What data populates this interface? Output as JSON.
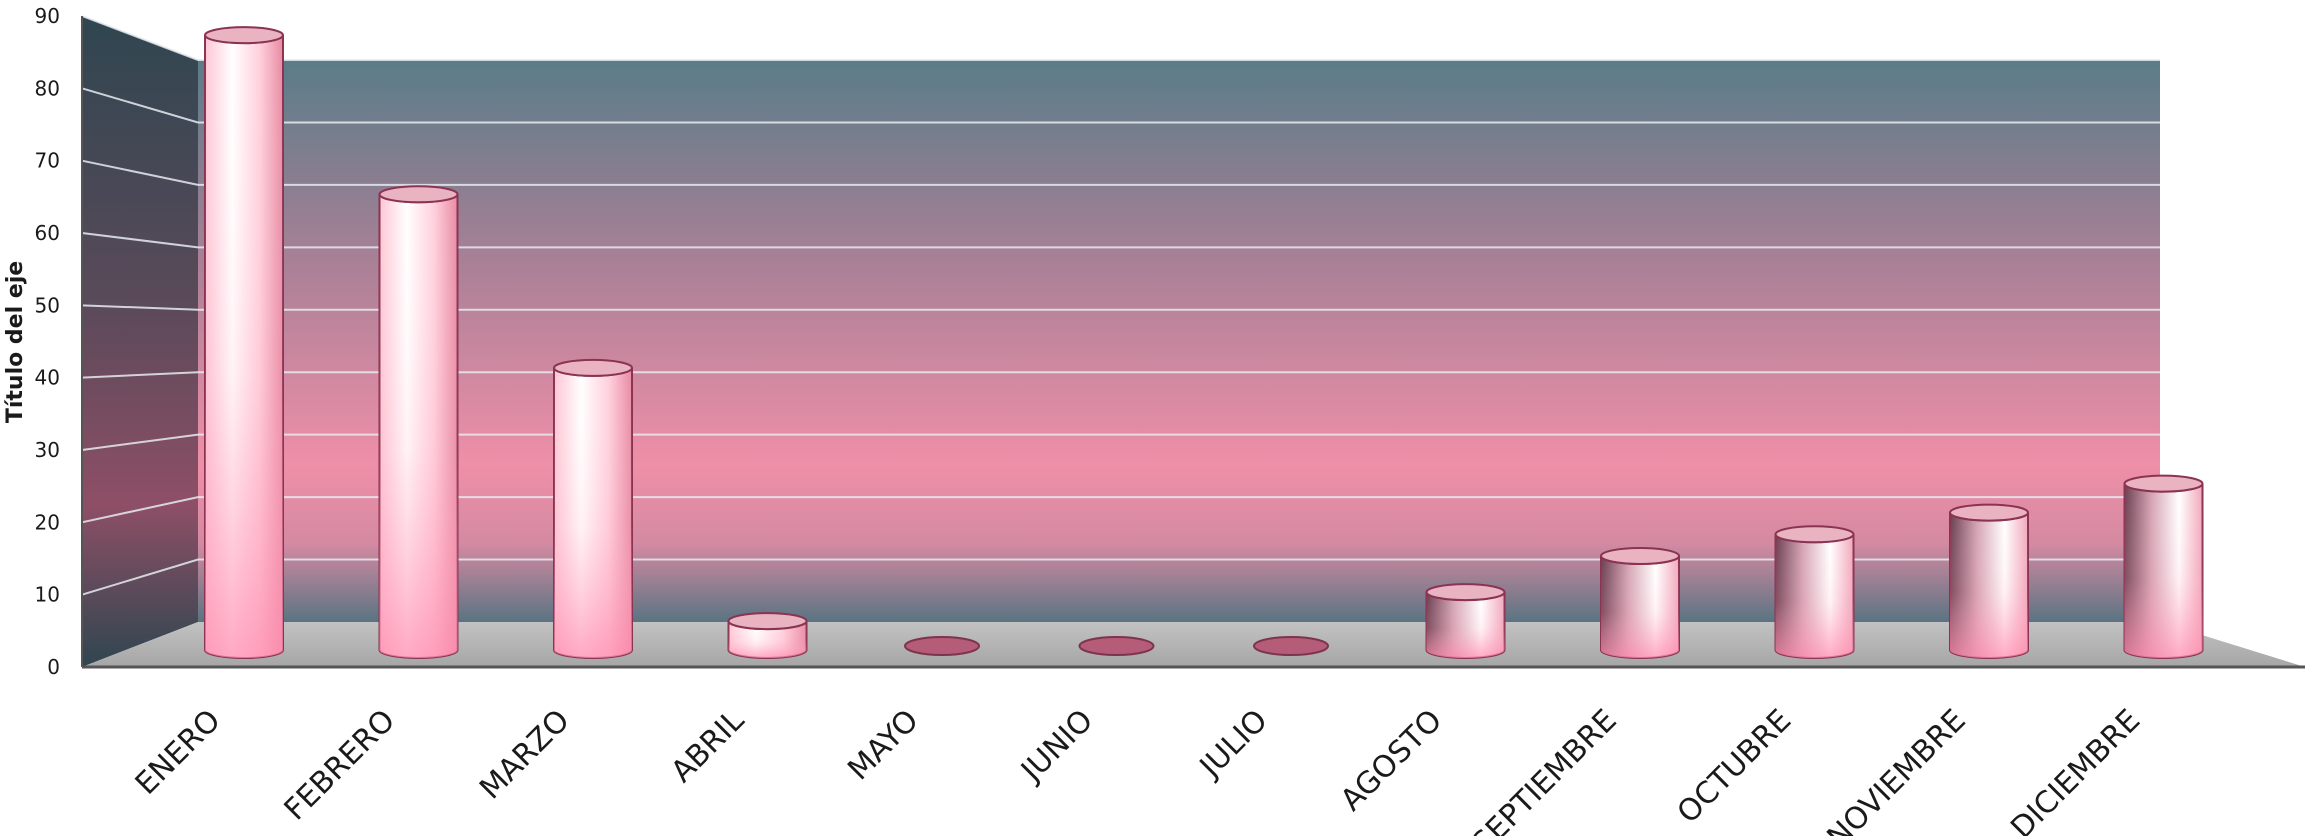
{
  "chart_data": {
    "type": "bar",
    "style": "3d-cylinder",
    "categories": [
      "ENERO",
      "FEBRERO",
      "MARZO",
      "ABRIL",
      "MAYO",
      "JUNIO",
      "JULIO",
      "AGOSTO",
      "SEPTIEMBRE",
      "OCTUBRE",
      "NOVIEMBRE",
      "DICIEMBRE"
    ],
    "values": [
      85,
      63,
      39,
      4,
      0,
      0,
      0,
      8,
      13,
      16,
      19,
      23
    ],
    "title": "",
    "xlabel": "",
    "ylabel": "Título del eje",
    "ylim": [
      0,
      90
    ],
    "yticks": [
      0,
      10,
      20,
      30,
      40,
      50,
      60,
      70,
      80,
      90
    ],
    "grid": true,
    "legend": "none",
    "colors": {
      "bar_light": "#ffffff",
      "bar_pink": "#ff9fb8",
      "bar_edge": "#8a3352",
      "wall_top": "#5a7c88",
      "wall_mid": "#ef8fa8",
      "wall_bottom": "#5a7482",
      "floor": "#b3b3b3"
    }
  }
}
